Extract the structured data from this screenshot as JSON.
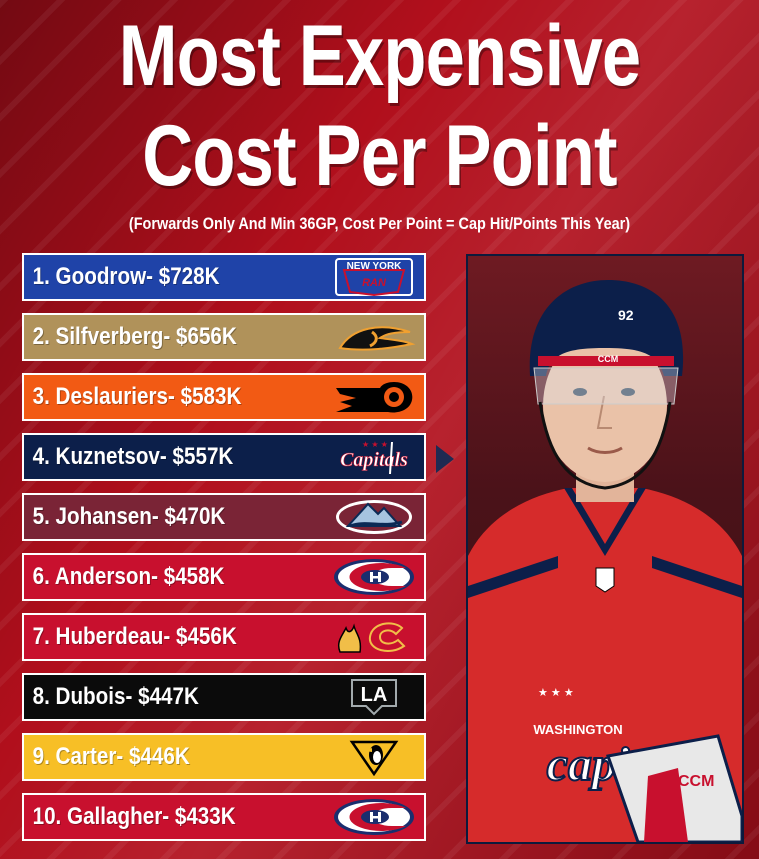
{
  "title": {
    "line1": "Most Expensive",
    "line2": "Cost Per Point"
  },
  "subtitle": "(Forwards Only And Min 36GP, Cost Per Point = Cap Hit/Points This Year)",
  "rows": [
    {
      "label": "1. Goodrow- $728K",
      "bg": "#1f43a8",
      "logo": "rangers-logo",
      "logo_text": "NEW YORK"
    },
    {
      "label": "2. Silfverberg- $656K",
      "bg": "#b0925a",
      "logo": "ducks-logo"
    },
    {
      "label": "3. Deslauriers- $583K",
      "bg": "#f25a14",
      "logo": "flyers-logo"
    },
    {
      "label": "4. Kuznetsov- $557K",
      "bg": "#0c1f4a",
      "logo": "capitals-logo",
      "logo_text": "Capitals"
    },
    {
      "label": "5. Johansen- $470K",
      "bg": "#7a2436",
      "logo": "avalanche-logo"
    },
    {
      "label": "6. Anderson- $458K",
      "bg": "#c8102e",
      "logo": "canadiens-logo"
    },
    {
      "label": "7. Huberdeau- $456K",
      "bg": "#c8102e",
      "logo": "flames-logo"
    },
    {
      "label": "8. Dubois- $447K",
      "bg": "#0b0b0b",
      "logo": "kings-logo",
      "logo_text": "LA"
    },
    {
      "label": "9. Carter- $446K",
      "bg": "#f7bf26",
      "logo": "penguins-logo"
    },
    {
      "label": "10. Gallagher- $433K",
      "bg": "#c8102e",
      "logo": "canadiens-logo"
    }
  ],
  "photo": {
    "jersey_text": "WASHINGTON",
    "jersey_number": "92",
    "helmet_brand": "CCM",
    "glove_brand": "CCM"
  }
}
